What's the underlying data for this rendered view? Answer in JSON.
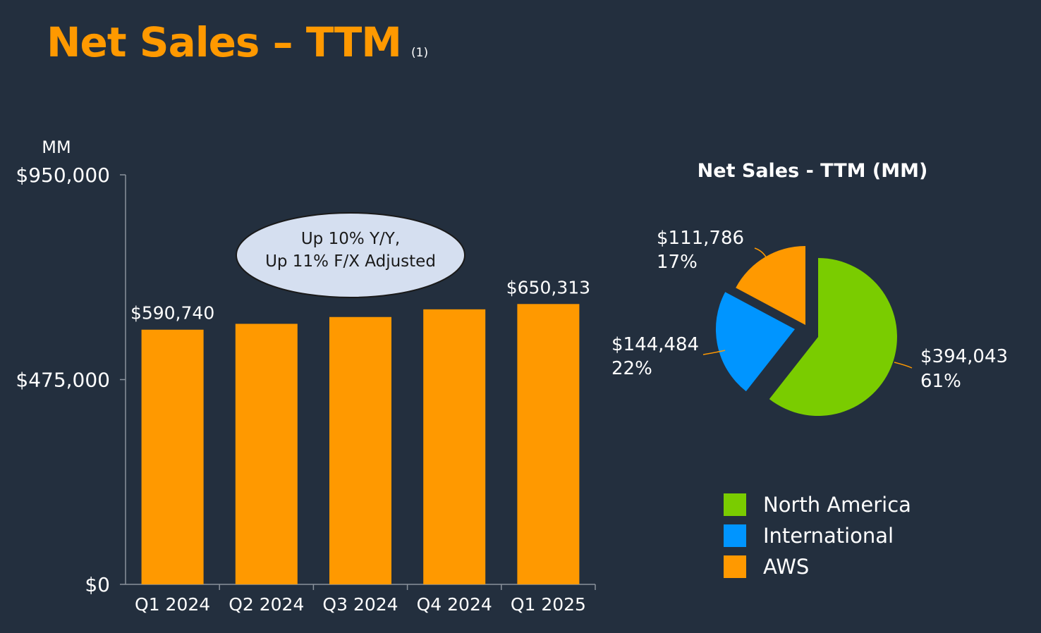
{
  "title": "Net Sales – TTM",
  "title_note": "(1)",
  "colors": {
    "background": "#232f3e",
    "accent": "#ff9900",
    "north_america": "#7acc00",
    "international": "#0095ff",
    "aws": "#ff9900",
    "callout_fill": "#d5dff0"
  },
  "callout": {
    "line1": "Up 10% Y/Y,",
    "line2": "Up 11% F/X Adjusted"
  },
  "chart_data": [
    {
      "type": "bar",
      "ylabel": "MM",
      "ylim": [
        0,
        950000
      ],
      "y_ticks": [
        0,
        475000,
        950000
      ],
      "y_tick_labels": [
        "$0",
        "$475,000",
        "$950,000"
      ],
      "categories": [
        "Q1 2024",
        "Q2 2024",
        "Q3 2024",
        "Q4 2024",
        "Q1 2025"
      ],
      "values": [
        590740,
        604334,
        620128,
        637959,
        650313
      ],
      "data_labels": [
        "$590,740",
        "",
        "",
        "",
        "$650,313"
      ],
      "grid": false
    },
    {
      "type": "pie",
      "title": "Net Sales - TTM (MM)",
      "slices": [
        {
          "name": "North America",
          "value": 394043,
          "value_label": "$394,043",
          "pct_label": "61%"
        },
        {
          "name": "International",
          "value": 144484,
          "value_label": "$144,484",
          "pct_label": "22%"
        },
        {
          "name": "AWS",
          "value": 111786,
          "value_label": "$111,786",
          "pct_label": "17%"
        }
      ],
      "legend": [
        "North America",
        "International",
        "AWS"
      ],
      "legend_position": "bottom"
    }
  ]
}
